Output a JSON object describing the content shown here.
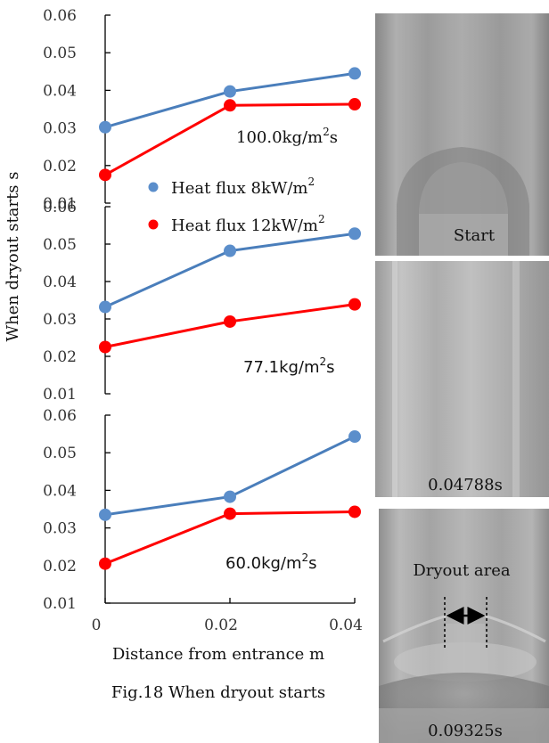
{
  "caption": "Fig.18 When dryout starts",
  "colors": {
    "blue": "#5B8ECB",
    "blue_line": "#4A7EBB",
    "red": "#FF0000"
  },
  "chart_data": {
    "type": "line",
    "ylabel": "When dryout starts s",
    "xlabel": "Distance from entrance m",
    "x_ticks": [
      "0",
      "0.02",
      "0.04"
    ],
    "legend": [
      {
        "name": "Heat flux 8kW/m",
        "sup": "2"
      },
      {
        "name": "Heat flux 12kW/m",
        "sup": "2"
      }
    ],
    "panels": [
      {
        "title": "100.0kg/m",
        "title_sup": "2",
        "title_end": "s",
        "ylim": [
          0.01,
          0.06
        ],
        "y_ticks": [
          "0.06",
          "0.05",
          "0.04",
          "0.03",
          "0.02",
          "0.01"
        ],
        "x": [
          0,
          0.02,
          0.04
        ],
        "series": [
          {
            "name": "Heat flux 8kW/m2",
            "values": [
              0.0302,
              0.0397,
              0.0445
            ]
          },
          {
            "name": "Heat flux 12kW/m2",
            "values": [
              0.0175,
              0.036,
              0.0363
            ]
          }
        ]
      },
      {
        "title": "77.1kg/m",
        "title_sup": "2",
        "title_end": "s",
        "ylim": [
          0.01,
          0.06
        ],
        "y_ticks": [
          "0.06",
          "0.05",
          "0.04",
          "0.03",
          "0.02",
          "0.01"
        ],
        "x": [
          0,
          0.02,
          0.04
        ],
        "series": [
          {
            "name": "Heat flux 8kW/m2",
            "values": [
              0.0332,
              0.0482,
              0.0528
            ]
          },
          {
            "name": "Heat flux 12kW/m2",
            "values": [
              0.0225,
              0.0293,
              0.0339
            ]
          }
        ]
      },
      {
        "title": "60.0kg/m",
        "title_sup": "2",
        "title_end": "s",
        "ylim": [
          0.01,
          0.06
        ],
        "y_ticks": [
          "0.06",
          "0.05",
          "0.04",
          "0.03",
          "0.02",
          "0.01"
        ],
        "x": [
          0,
          0.02,
          0.04
        ],
        "series": [
          {
            "name": "Heat flux 8kW/m2",
            "values": [
              0.0335,
              0.0383,
              0.0543
            ]
          },
          {
            "name": "Heat flux 12kW/m2",
            "values": [
              0.0205,
              0.0338,
              0.0343
            ]
          }
        ]
      }
    ]
  },
  "photos": [
    {
      "label": "Start"
    },
    {
      "label": "0.04788s"
    },
    {
      "label": "0.09325s",
      "annotation": "Dryout area"
    }
  ]
}
